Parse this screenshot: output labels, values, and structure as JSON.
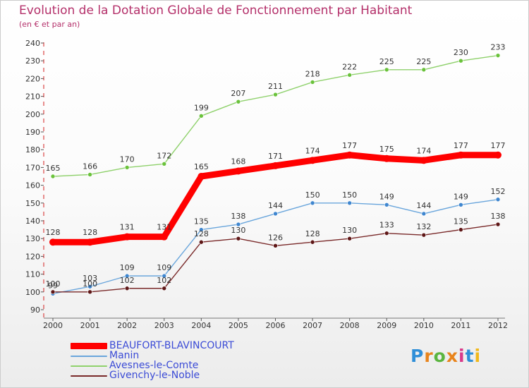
{
  "chart_data": {
    "type": "line",
    "title": "Evolution de la Dotation Globale de Fonctionnement par Habitant",
    "subtitle": "(en € et par an)",
    "xlabel": "",
    "ylabel": "",
    "ylim": [
      90,
      240
    ],
    "yticks": [
      90,
      100,
      110,
      120,
      130,
      140,
      150,
      160,
      170,
      180,
      190,
      200,
      210,
      220,
      230,
      240
    ],
    "categories": [
      "2000",
      "2001",
      "2002",
      "2003",
      "2004",
      "2005",
      "2006",
      "2007",
      "2008",
      "2009",
      "2010",
      "2011",
      "2012"
    ],
    "series": [
      {
        "name": "Avesnes-le-Comte",
        "color": "#8fd16c",
        "marker": "#6ac23b",
        "values": [
          165,
          166,
          170,
          172,
          199,
          207,
          211,
          218,
          222,
          225,
          225,
          230,
          233
        ]
      },
      {
        "name": "Manin",
        "color": "#6aa6dc",
        "marker": "#3f86cf",
        "values": [
          99,
          103,
          109,
          109,
          135,
          138,
          144,
          150,
          150,
          149,
          144,
          149,
          152
        ]
      },
      {
        "name": "Givenchy-le-Noble",
        "color": "#7a2a2a",
        "marker": "#5e1717",
        "values": [
          100,
          100,
          102,
          102,
          128,
          130,
          126,
          128,
          130,
          133,
          132,
          135,
          138
        ]
      },
      {
        "name": "BEAUFORT-BLAVINCOURT",
        "color": "#ff0000",
        "marker": "#ff0000",
        "values": [
          128,
          128,
          131,
          131,
          165,
          168,
          171,
          174,
          177,
          175,
          174,
          177,
          177
        ]
      }
    ],
    "legend_order": [
      "BEAUFORT-BLAVINCOURT",
      "Manin",
      "Avesnes-le-Comte",
      "Givenchy-le-Noble"
    ],
    "grid": false
  },
  "branding": {
    "logo_letters": [
      "P",
      "r",
      "o",
      "x",
      "i",
      "t",
      "i"
    ],
    "logo_colors": [
      "#2f8fd8",
      "#e8841c",
      "#5bb540",
      "#e8841c",
      "#d93a8a",
      "#2f8fd8",
      "#f0b81a"
    ]
  }
}
